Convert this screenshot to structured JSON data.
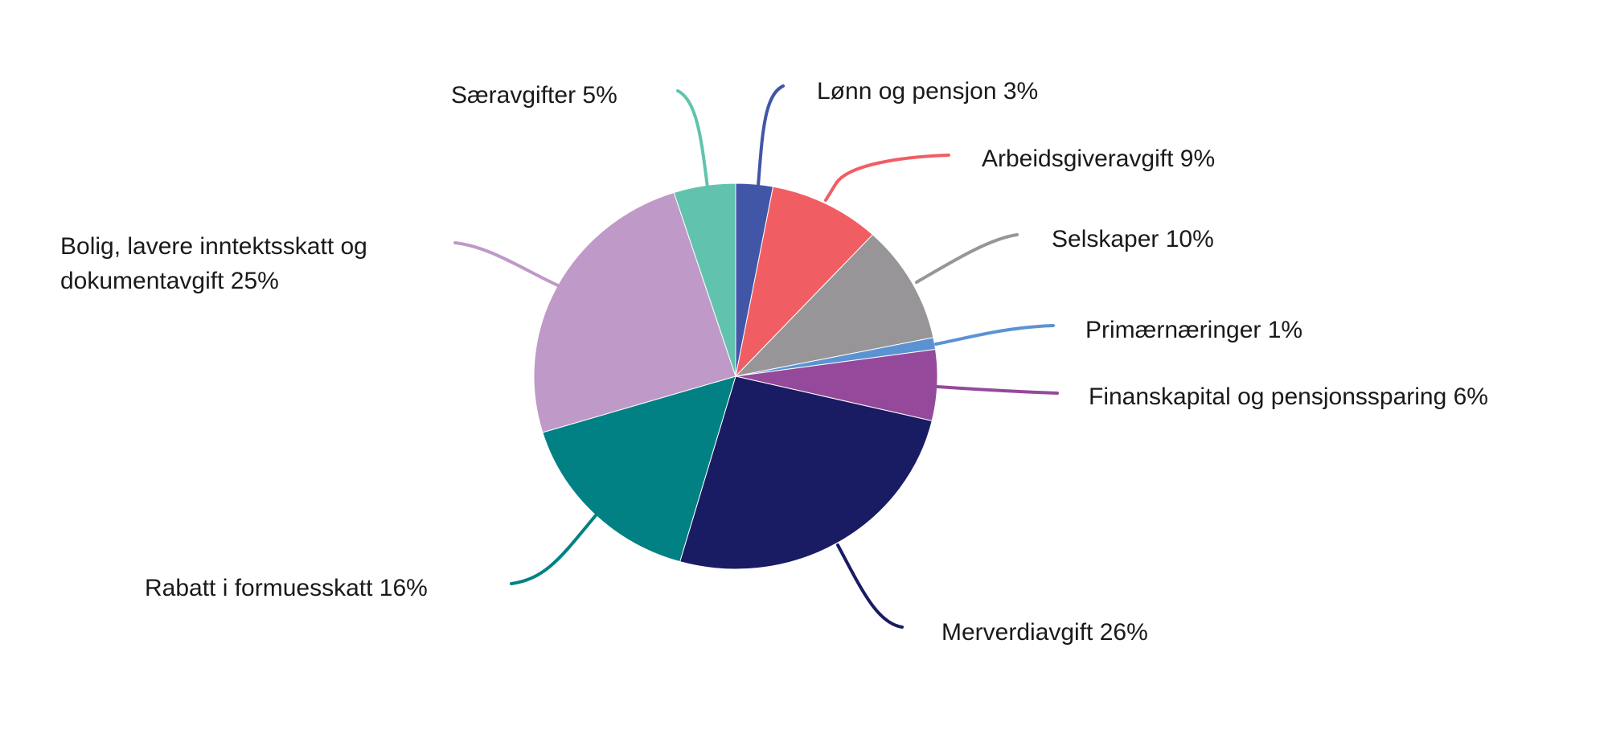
{
  "chart_data": {
    "type": "pie",
    "title": "",
    "start_angle_deg": 0,
    "direction": "clockwise",
    "slices": [
      {
        "label": "Lønn og pensjon",
        "value": 3,
        "color": "#4156A7"
      },
      {
        "label": "Arbeidsgiveravgift",
        "value": 9,
        "color": "#F05E64"
      },
      {
        "label": "Selskaper",
        "value": 10,
        "color": "#979597"
      },
      {
        "label": "Primærnæringer",
        "value": 1,
        "color": "#5B93D2"
      },
      {
        "label": "Finanskapital og pensjonssparing",
        "value": 6,
        "color": "#95499A"
      },
      {
        "label": "Merverdiavgift",
        "value": 26,
        "color": "#191C63"
      },
      {
        "label": "Rabatt i formuesskatt",
        "value": 16,
        "color": "#018183"
      },
      {
        "label": "Bolig, lavere inntektsskatt og dokumentavgift",
        "value": 25,
        "color": "#BF99C7"
      },
      {
        "label": "Særavgifter",
        "value": 5,
        "color": "#61C3AD"
      }
    ],
    "legend": "leader-line labels around pie"
  },
  "labels": {
    "lonn": "Lønn og pensjon 3%",
    "arbeidsgiver": "Arbeidsgiveravgift 9%",
    "selskaper": "Selskaper 10%",
    "primaer": "Primærnæringer 1%",
    "finans": "Finanskapital og pensjonssparing 6%",
    "merverdi": "Merverdiavgift 26%",
    "rabatt": "Rabatt i formuesskatt 16%",
    "bolig_line1": "Bolig, lavere inntektsskatt og",
    "bolig_line2": "dokumentavgift 25%",
    "saer": "Særavgifter 5%"
  }
}
